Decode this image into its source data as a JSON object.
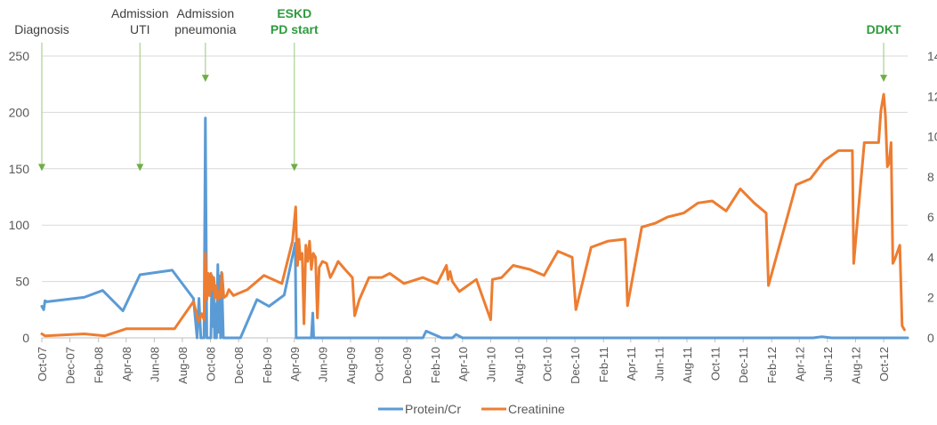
{
  "chart_data": {
    "type": "line",
    "title": "",
    "xlabel": "",
    "ylabel_left": "",
    "ylabel_right": "",
    "x_axis": {
      "start": "2007-10",
      "end": "2012-12",
      "tick_labels": [
        "Oct-07",
        "Dec-07",
        "Feb-08",
        "Apr-08",
        "Jun-08",
        "Aug-08",
        "Oct-08",
        "Dec-08",
        "Feb-09",
        "Apr-09",
        "Jun-09",
        "Aug-09",
        "Oct-09",
        "Dec-09",
        "Feb-10",
        "Apr-10",
        "Jun-10",
        "Aug-10",
        "Oct-10",
        "Dec-10",
        "Feb-11",
        "Apr-11",
        "Jun-11",
        "Aug-11",
        "Oct-11",
        "Dec-11",
        "Feb-12",
        "Apr-12",
        "Jun-12",
        "Aug-12",
        "Oct-12"
      ]
    },
    "y_left": {
      "range": [
        0,
        250
      ],
      "ticks": [
        0,
        50,
        100,
        150,
        200,
        250
      ]
    },
    "y_right": {
      "range": [
        0,
        14
      ],
      "ticks": [
        0,
        2,
        4,
        6,
        8,
        10,
        12,
        14
      ]
    },
    "grid": "horizontal",
    "legend_position": "bottom",
    "series": [
      {
        "name": "Protein/Cr",
        "axis": "left",
        "color": "#5B9BD5",
        "points": [
          [
            "2007-10-01",
            28
          ],
          [
            "2007-10-05",
            25
          ],
          [
            "2007-10-08",
            33
          ],
          [
            "2007-10-12",
            32
          ],
          [
            "2008-01-01",
            36
          ],
          [
            "2008-02-10",
            42
          ],
          [
            "2008-03-25",
            24
          ],
          [
            "2008-05-01",
            56
          ],
          [
            "2008-07-10",
            60
          ],
          [
            "2008-08-25",
            35
          ],
          [
            "2008-09-02",
            0
          ],
          [
            "2008-09-06",
            35
          ],
          [
            "2008-09-10",
            0
          ],
          [
            "2008-09-17",
            0
          ],
          [
            "2008-09-20",
            195
          ],
          [
            "2008-09-23",
            0
          ],
          [
            "2008-10-02",
            0
          ],
          [
            "2008-10-04",
            55
          ],
          [
            "2008-10-06",
            10
          ],
          [
            "2008-10-08",
            40
          ],
          [
            "2008-10-10",
            0
          ],
          [
            "2008-10-12",
            30
          ],
          [
            "2008-10-14",
            0
          ],
          [
            "2008-10-17",
            65
          ],
          [
            "2008-10-19",
            5
          ],
          [
            "2008-10-21",
            55
          ],
          [
            "2008-10-23",
            0
          ],
          [
            "2008-10-25",
            58
          ],
          [
            "2008-10-29",
            0
          ],
          [
            "2008-11-10",
            0
          ],
          [
            "2008-12-05",
            0
          ],
          [
            "2009-01-10",
            34
          ],
          [
            "2009-02-05",
            28
          ],
          [
            "2009-03-10",
            38
          ],
          [
            "2009-04-03",
            84
          ],
          [
            "2009-04-05",
            0
          ],
          [
            "2009-05-08",
            0
          ],
          [
            "2009-05-11",
            22
          ],
          [
            "2009-05-13",
            0
          ],
          [
            "2010-01-05",
            0
          ],
          [
            "2010-01-12",
            6
          ],
          [
            "2010-02-15",
            0
          ],
          [
            "2010-03-10",
            0
          ],
          [
            "2010-03-18",
            3
          ],
          [
            "2010-04-01",
            0
          ],
          [
            "2012-05-01",
            0
          ],
          [
            "2012-05-20",
            1
          ],
          [
            "2012-06-10",
            0
          ],
          [
            "2012-11-22",
            0
          ]
        ]
      },
      {
        "name": "Creatinine",
        "axis": "right",
        "color": "#ED7D31",
        "points": [
          [
            "2007-10-01",
            0.2
          ],
          [
            "2007-10-08",
            0.1
          ],
          [
            "2008-01-01",
            0.2
          ],
          [
            "2008-02-15",
            0.1
          ],
          [
            "2008-04-01",
            0.45
          ],
          [
            "2008-07-15",
            0.45
          ],
          [
            "2008-08-25",
            1.8
          ],
          [
            "2008-09-05",
            0.8
          ],
          [
            "2008-09-12",
            1.2
          ],
          [
            "2008-09-17",
            0.9
          ],
          [
            "2008-09-20",
            4.2
          ],
          [
            "2008-09-23",
            1.9
          ],
          [
            "2008-09-26",
            3.2
          ],
          [
            "2008-09-29",
            2.1
          ],
          [
            "2008-10-02",
            3.2
          ],
          [
            "2008-10-05",
            2.4
          ],
          [
            "2008-10-08",
            3.0
          ],
          [
            "2008-10-11",
            2.0
          ],
          [
            "2008-10-14",
            2.6
          ],
          [
            "2008-10-17",
            1.9
          ],
          [
            "2008-10-20",
            2.3
          ],
          [
            "2008-10-23",
            2.0
          ],
          [
            "2008-10-26",
            3.2
          ],
          [
            "2008-10-30",
            2.0
          ],
          [
            "2008-11-05",
            2.1
          ],
          [
            "2008-11-10",
            2.4
          ],
          [
            "2008-11-20",
            2.1
          ],
          [
            "2008-12-20",
            2.4
          ],
          [
            "2009-01-25",
            3.1
          ],
          [
            "2009-03-05",
            2.7
          ],
          [
            "2009-03-28",
            4.8
          ],
          [
            "2009-04-01",
            5.8
          ],
          [
            "2009-04-04",
            6.5
          ],
          [
            "2009-04-06",
            4.5
          ],
          [
            "2009-04-08",
            3.6
          ],
          [
            "2009-04-11",
            4.9
          ],
          [
            "2009-04-14",
            3.9
          ],
          [
            "2009-04-18",
            4.2
          ],
          [
            "2009-04-22",
            0.7
          ],
          [
            "2009-04-26",
            4.6
          ],
          [
            "2009-04-30",
            3.8
          ],
          [
            "2009-05-04",
            4.8
          ],
          [
            "2009-05-08",
            3.4
          ],
          [
            "2009-05-12",
            4.2
          ],
          [
            "2009-05-17",
            4.0
          ],
          [
            "2009-05-21",
            1.0
          ],
          [
            "2009-05-25",
            3.5
          ],
          [
            "2009-06-01",
            3.8
          ],
          [
            "2009-06-10",
            3.7
          ],
          [
            "2009-06-18",
            3.0
          ],
          [
            "2009-06-25",
            3.3
          ],
          [
            "2009-07-05",
            3.8
          ],
          [
            "2009-07-20",
            3.4
          ],
          [
            "2009-08-05",
            3.0
          ],
          [
            "2009-08-10",
            1.1
          ],
          [
            "2009-08-20",
            1.9
          ],
          [
            "2009-09-10",
            3.0
          ],
          [
            "2009-10-08",
            3.0
          ],
          [
            "2009-10-25",
            3.2
          ],
          [
            "2009-11-25",
            2.7
          ],
          [
            "2010-01-05",
            3.0
          ],
          [
            "2010-02-05",
            2.7
          ],
          [
            "2010-02-25",
            3.6
          ],
          [
            "2010-03-01",
            2.9
          ],
          [
            "2010-03-05",
            3.3
          ],
          [
            "2010-03-10",
            2.8
          ],
          [
            "2010-03-25",
            2.3
          ],
          [
            "2010-05-01",
            2.9
          ],
          [
            "2010-06-01",
            0.9
          ],
          [
            "2010-06-05",
            2.9
          ],
          [
            "2010-06-25",
            3.0
          ],
          [
            "2010-07-20",
            3.6
          ],
          [
            "2010-08-25",
            3.4
          ],
          [
            "2010-09-25",
            3.1
          ],
          [
            "2010-10-25",
            4.3
          ],
          [
            "2010-11-25",
            4.0
          ],
          [
            "2010-12-03",
            1.4
          ],
          [
            "2011-01-05",
            4.5
          ],
          [
            "2011-02-10",
            4.8
          ],
          [
            "2011-03-20",
            4.9
          ],
          [
            "2011-03-25",
            1.6
          ],
          [
            "2011-04-25",
            5.5
          ],
          [
            "2011-05-25",
            5.7
          ],
          [
            "2011-06-20",
            6.0
          ],
          [
            "2011-07-25",
            6.2
          ],
          [
            "2011-08-25",
            6.7
          ],
          [
            "2011-09-25",
            6.8
          ],
          [
            "2011-10-25",
            6.3
          ],
          [
            "2011-11-25",
            7.4
          ],
          [
            "2011-12-25",
            6.7
          ],
          [
            "2012-01-20",
            6.2
          ],
          [
            "2012-01-25",
            2.6
          ],
          [
            "2012-03-25",
            7.6
          ],
          [
            "2012-04-25",
            7.9
          ],
          [
            "2012-05-25",
            8.8
          ],
          [
            "2012-06-25",
            9.3
          ],
          [
            "2012-07-25",
            9.3
          ],
          [
            "2012-07-28",
            3.7
          ],
          [
            "2012-08-20",
            9.7
          ],
          [
            "2012-09-20",
            9.7
          ],
          [
            "2012-09-25",
            11.3
          ],
          [
            "2012-10-01",
            12.1
          ],
          [
            "2012-10-05",
            11.0
          ],
          [
            "2012-10-09",
            8.5
          ],
          [
            "2012-10-13",
            8.7
          ],
          [
            "2012-10-17",
            9.7
          ],
          [
            "2012-10-21",
            3.7
          ],
          [
            "2012-10-25",
            3.9
          ],
          [
            "2012-11-05",
            4.6
          ],
          [
            "2012-11-10",
            0.6
          ],
          [
            "2012-11-15",
            0.4
          ]
        ]
      }
    ],
    "annotations": [
      {
        "lines": [
          "Diagnosis"
        ],
        "date": "2007-10-01",
        "arrow_value": 148,
        "color": "#404040"
      },
      {
        "lines": [
          "Admission",
          "UTI"
        ],
        "date": "2008-05-01",
        "arrow_value": 148,
        "color": "#404040"
      },
      {
        "lines": [
          "Admission",
          "pneumonia"
        ],
        "date": "2008-09-20",
        "arrow_value": 227,
        "color": "#404040"
      },
      {
        "lines": [
          "ESKD",
          "PD start"
        ],
        "date": "2009-04-01",
        "arrow_value": 148,
        "color": "#2E9B3E"
      },
      {
        "lines": [
          "DDKT"
        ],
        "date": "2012-10-01",
        "arrow_value": 227,
        "color": "#2E9B3E"
      }
    ]
  }
}
